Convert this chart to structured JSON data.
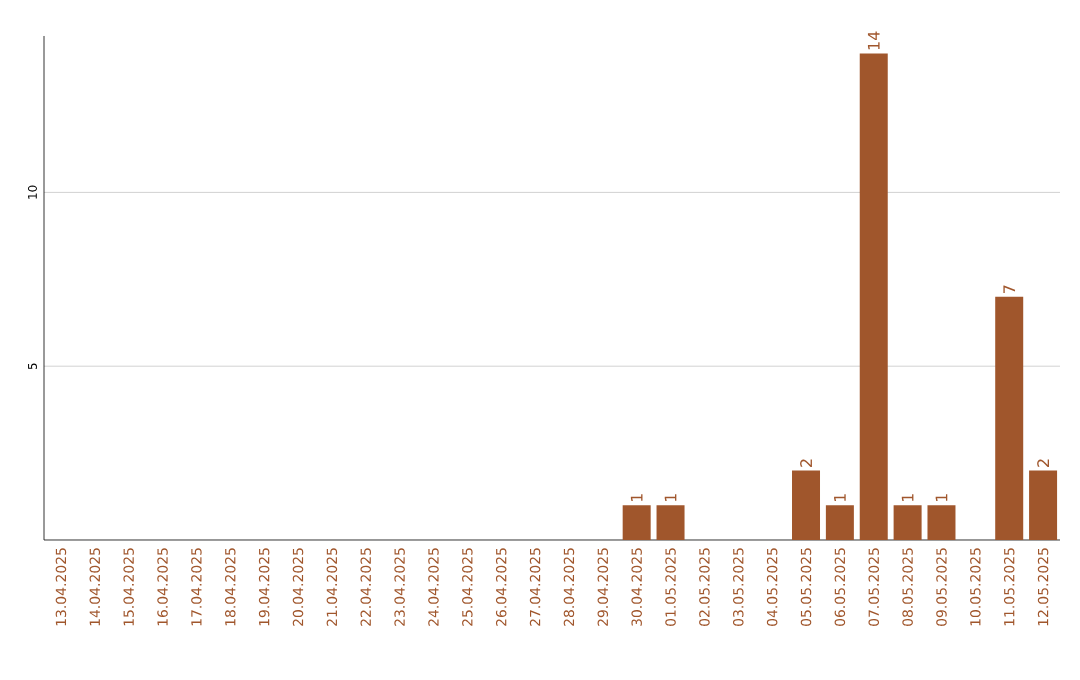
{
  "chart_data": {
    "type": "bar",
    "categories": [
      "13.04.2025",
      "14.04.2025",
      "15.04.2025",
      "16.04.2025",
      "17.04.2025",
      "18.04.2025",
      "19.04.2025",
      "20.04.2025",
      "21.04.2025",
      "22.04.2025",
      "23.04.2025",
      "24.04.2025",
      "25.04.2025",
      "26.04.2025",
      "27.04.2025",
      "28.04.2025",
      "29.04.2025",
      "30.04.2025",
      "01.05.2025",
      "02.05.2025",
      "03.05.2025",
      "04.05.2025",
      "05.05.2025",
      "06.05.2025",
      "07.05.2025",
      "08.05.2025",
      "09.05.2025",
      "10.05.2025",
      "11.05.2025",
      "12.05.2025"
    ],
    "values": [
      0,
      0,
      0,
      0,
      0,
      0,
      0,
      0,
      0,
      0,
      0,
      0,
      0,
      0,
      0,
      0,
      0,
      1,
      1,
      0,
      0,
      0,
      2,
      1,
      14,
      1,
      1,
      0,
      7,
      2
    ],
    "value_labels": [
      null,
      null,
      null,
      null,
      null,
      null,
      null,
      null,
      null,
      null,
      null,
      null,
      null,
      null,
      null,
      null,
      null,
      "1",
      "1",
      null,
      null,
      null,
      "2",
      "1",
      "14",
      "1",
      "1",
      null,
      "7",
      "2"
    ],
    "color": "#a0562c",
    "ylim": [
      0,
      14.5
    ],
    "yticks": [
      5,
      10
    ],
    "grid": "y"
  }
}
